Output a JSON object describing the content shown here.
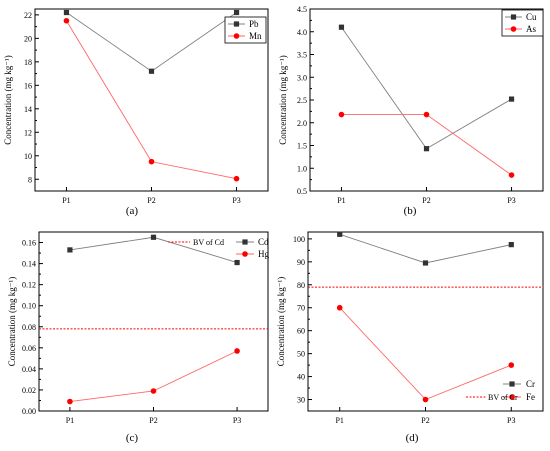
{
  "chart_data": [
    {
      "type": "line",
      "panel_label": "(a)",
      "categories": [
        "P1",
        "P2",
        "P3"
      ],
      "ylabel": "Concentration (mg kg⁻¹)",
      "ylim": [
        7,
        22.5
      ],
      "yticks": [
        8,
        10,
        12,
        14,
        16,
        18,
        20,
        22
      ],
      "legend_position": "top-right",
      "series": [
        {
          "name": "Pb",
          "marker": "square",
          "color": "#333333",
          "line_color": "#808080",
          "values": [
            22.2,
            17.2,
            22.2
          ]
        },
        {
          "name": "Mn",
          "marker": "circle",
          "color": "#ff0000",
          "line_color": "#ff6666",
          "values": [
            21.5,
            9.5,
            8.05
          ]
        }
      ]
    },
    {
      "type": "line",
      "panel_label": "(b)",
      "categories": [
        "P1",
        "P2",
        "P3"
      ],
      "ylabel": "Concentration (mg kg⁻¹)",
      "ylim": [
        0.5,
        4.5
      ],
      "yticks": [
        0.5,
        1.0,
        1.5,
        2.0,
        2.5,
        3.0,
        3.5,
        4.0,
        4.5
      ],
      "ytick_labels": [
        "0.5",
        "1.0",
        "1.5",
        "2.0",
        "2.5",
        "3.0",
        "3.5",
        "4.0",
        "4.5"
      ],
      "legend_position": "top-right",
      "series": [
        {
          "name": "Cu",
          "marker": "square",
          "color": "#333333",
          "line_color": "#808080",
          "values": [
            4.1,
            1.43,
            2.52
          ]
        },
        {
          "name": "As",
          "marker": "circle",
          "color": "#ff0000",
          "line_color": "#ff6666",
          "values": [
            2.18,
            2.18,
            0.85
          ]
        }
      ]
    },
    {
      "type": "line",
      "panel_label": "(c)",
      "categories": [
        "P1",
        "P2",
        "P3"
      ],
      "ylabel": "Concentration (mg kg⁻¹)",
      "ylim": [
        0,
        0.17
      ],
      "yticks": [
        0.0,
        0.02,
        0.04,
        0.06,
        0.08,
        0.1,
        0.12,
        0.14,
        0.16
      ],
      "ytick_labels": [
        "0.00",
        "0.02",
        "0.04",
        "0.06",
        "0.08",
        "0.10",
        "0.12",
        "0.14",
        "0.16"
      ],
      "legend_position": "top-right",
      "reference_line": {
        "name": "BV of Cd",
        "value": 0.078,
        "color": "#ff0000"
      },
      "series": [
        {
          "name": "Cd",
          "marker": "square",
          "color": "#333333",
          "line_color": "#808080",
          "values": [
            0.153,
            0.165,
            0.141
          ]
        },
        {
          "name": "Hg",
          "marker": "circle",
          "color": "#ff0000",
          "line_color": "#ff6666",
          "values": [
            0.009,
            0.019,
            0.057
          ]
        }
      ]
    },
    {
      "type": "line",
      "panel_label": "(d)",
      "categories": [
        "P1",
        "P2",
        "P3"
      ],
      "ylabel": "Concentration (mg kg⁻¹)",
      "ylim": [
        25,
        103
      ],
      "yticks": [
        30,
        40,
        50,
        60,
        70,
        80,
        90,
        100
      ],
      "legend_position": "bottom-right",
      "reference_line": {
        "name": "BV of Cr",
        "value": 79,
        "color": "#ff0000"
      },
      "series": [
        {
          "name": "Cr",
          "marker": "square",
          "color": "#333333",
          "line_color": "#808080",
          "values": [
            102,
            89.5,
            97.5
          ]
        },
        {
          "name": "Fe",
          "marker": "circle",
          "color": "#ff0000",
          "line_color": "#ff6666",
          "values": [
            70,
            30,
            45
          ]
        }
      ]
    }
  ]
}
